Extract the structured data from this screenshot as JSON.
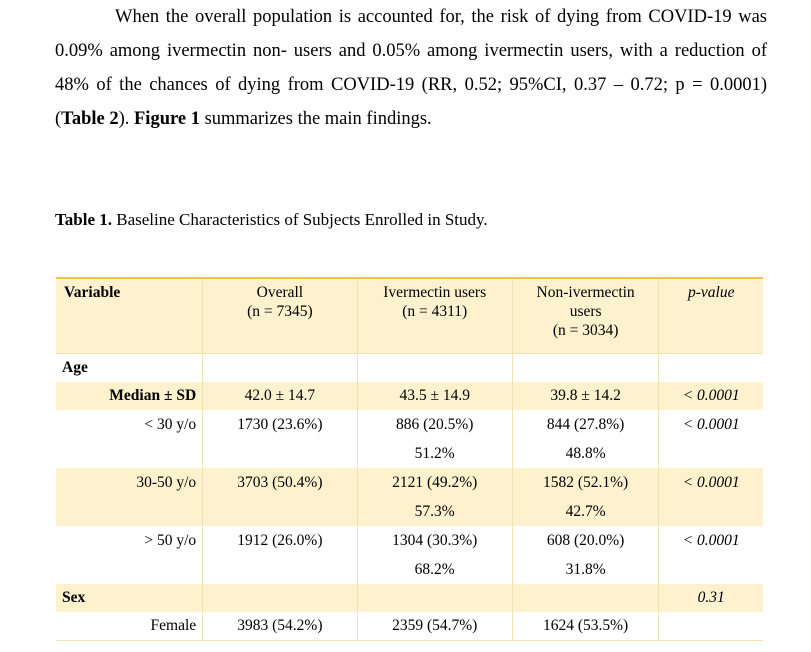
{
  "paragraph": {
    "lead": "When the overall population is accounted for, the risk of dying from COVID-19 was 0.09% among ivermectin non- users and 0.05% among ivermectin users, with a reduction of 48% of the chances of dying from COVID-19 (RR, 0.52; 95%CI, 0.37 – 0.72; p = 0.0001) (",
    "ref_table": "Table 2",
    "mid": "). ",
    "ref_figure": "Figure 1",
    "tail": " summarizes the main findings."
  },
  "caption": {
    "label": "Table 1.",
    "text": " Baseline Characteristics of Subjects Enrolled in Study."
  },
  "table": {
    "headers": {
      "variable": "Variable",
      "overall": "Overall",
      "overall_n": "(n = 7345)",
      "iver": "Ivermectin users",
      "iver_n": "(n = 4311)",
      "non_iver_1": "Non-ivermectin",
      "non_iver_2": "users",
      "non_iver_n": "(n = 3034)",
      "pvalue": "p-value"
    },
    "age_label": "Age",
    "rows": [
      {
        "label": "Median ± SD",
        "overall": "42.0 ± 14.7",
        "iver": "43.5 ± 14.9",
        "iver_pct": "",
        "non": "39.8 ± 14.2",
        "non_pct": "",
        "p": "< 0.0001"
      },
      {
        "label": "< 30 y/o",
        "overall": "1730 (23.6%)",
        "iver": "886 (20.5%)",
        "iver_pct": "51.2%",
        "non": "844 (27.8%)",
        "non_pct": "48.8%",
        "p": "< 0.0001"
      },
      {
        "label": "30-50 y/o",
        "overall": "3703 (50.4%)",
        "iver": "2121 (49.2%)",
        "iver_pct": "57.3%",
        "non": "1582 (52.1%)",
        "non_pct": "42.7%",
        "p": "< 0.0001"
      },
      {
        "label": "> 50 y/o",
        "overall": "1912 (26.0%)",
        "iver": "1304 (30.3%)",
        "iver_pct": "68.2%",
        "non": "608 (20.0%)",
        "non_pct": "31.8%",
        "p": "< 0.0001"
      }
    ],
    "sex_label": "Sex",
    "sex_p": "0.31",
    "female": {
      "label": "Female",
      "overall": "3983 (54.2%)",
      "iver": "2359 (54.7%)",
      "non": "1624 (53.5%)",
      "p": ""
    }
  }
}
